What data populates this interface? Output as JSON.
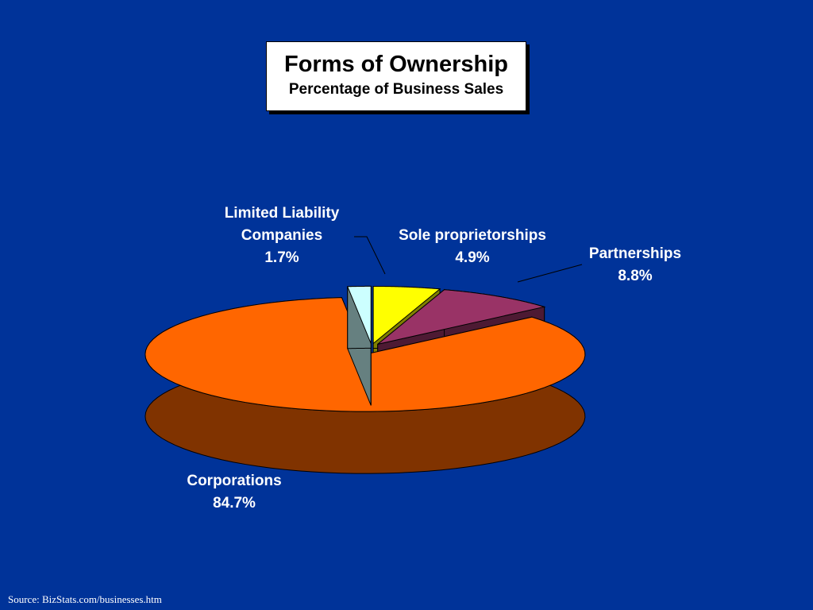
{
  "chart_data": {
    "type": "pie3d",
    "title": "Forms of Ownership",
    "subtitle": "Percentage of Business Sales",
    "categories": [
      "Sole proprietorships",
      "Partnerships",
      "Corporations",
      "Limited Liability Companies"
    ],
    "values": [
      4.9,
      8.8,
      84.7,
      1.7
    ],
    "value_labels": [
      "4.9%",
      "8.8%",
      "84.7%",
      "1.7%"
    ],
    "colors": [
      "#ffff00",
      "#993366",
      "#ff6600",
      "#ccffff"
    ],
    "source": "Source: BizStats.com/businesses.htm"
  }
}
